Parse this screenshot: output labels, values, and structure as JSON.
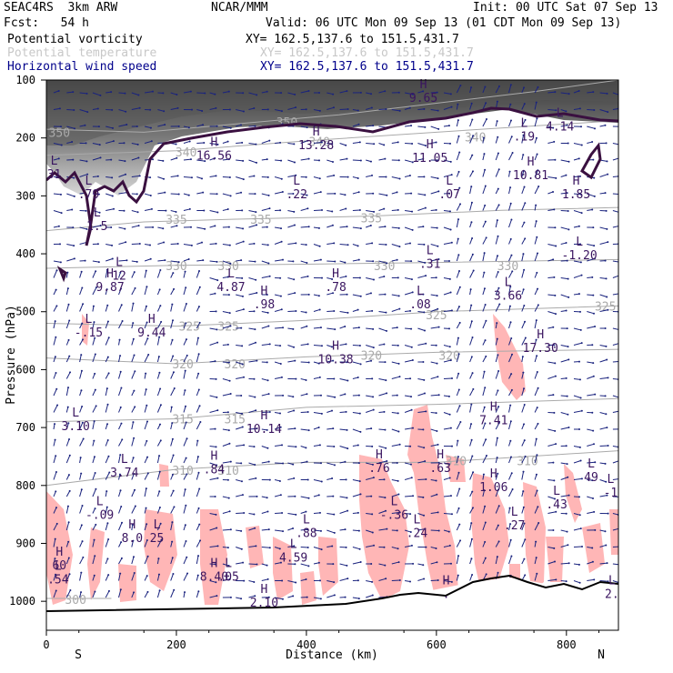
{
  "header": {
    "model": "SEAC4RS  3km ARW",
    "org": "NCAR/MMM",
    "init": "Init: 00 UTC Sat 07 Sep 13",
    "fcst": "Fcst:   54 h",
    "valid": "Valid: 06 UTC Mon 09 Sep 13 (01 CDT Mon 09 Sep 13)"
  },
  "legend": [
    {
      "name": "Potential vorticity",
      "xy": "XY= 162.5,137.6 to 151.5,431.7",
      "color": "#000000"
    },
    {
      "name": "Potential temperature",
      "xy": "XY= 162.5,137.6 to 151.5,431.7",
      "color": "#c8c8c8"
    },
    {
      "name": "Horizontal wind speed",
      "xy": "XY= 162.5,137.6 to 151.5,431.7",
      "color": "#00008b"
    }
  ],
  "chart_data": {
    "type": "cross-section",
    "xlabel": "Distance (km)",
    "ylabel": "Pressure (hPa)",
    "xlim": [
      0,
      880
    ],
    "ylim": [
      1050,
      100
    ],
    "x_ticks": [
      0,
      200,
      400,
      600,
      800
    ],
    "y_ticks": [
      100,
      200,
      300,
      400,
      500,
      600,
      700,
      800,
      900,
      1000
    ],
    "end_labels": {
      "left": "S",
      "right": "N"
    },
    "theta_contours": [
      {
        "label": "350",
        "pts": [
          [
            0,
            185
          ],
          [
            150,
            190
          ],
          [
            300,
            175
          ],
          [
            450,
            160
          ],
          [
            600,
            140
          ],
          [
            750,
            120
          ],
          [
            880,
            100
          ]
        ],
        "labels": [
          [
            20,
            190
          ],
          [
            370,
            172
          ]
        ]
      },
      {
        "label": "340",
        "pts": [
          [
            0,
            230
          ],
          [
            200,
            222
          ],
          [
            400,
            205
          ],
          [
            600,
            190
          ],
          [
            880,
            170
          ]
        ],
        "labels": [
          [
            215,
            224
          ],
          [
            420,
            206
          ],
          [
            660,
            198
          ]
        ]
      },
      {
        "label": "335",
        "pts": [
          [
            0,
            360
          ],
          [
            150,
            345
          ],
          [
            300,
            340
          ],
          [
            500,
            335
          ],
          [
            700,
            325
          ],
          [
            880,
            320
          ]
        ],
        "labels": [
          [
            200,
            340
          ],
          [
            330,
            340
          ],
          [
            500,
            338
          ]
        ]
      },
      {
        "label": "330",
        "pts": [
          [
            0,
            425
          ],
          [
            200,
            420
          ],
          [
            400,
            418
          ],
          [
            600,
            415
          ],
          [
            880,
            410
          ]
        ],
        "labels": [
          [
            200,
            420
          ],
          [
            280,
            420
          ],
          [
            520,
            420
          ],
          [
            710,
            420
          ]
        ]
      },
      {
        "label": "325",
        "pts": [
          [
            0,
            520
          ],
          [
            200,
            525
          ],
          [
            400,
            515
          ],
          [
            600,
            500
          ],
          [
            880,
            490
          ]
        ],
        "labels": [
          [
            220,
            525
          ],
          [
            280,
            525
          ],
          [
            600,
            505
          ],
          [
            860,
            490
          ]
        ]
      },
      {
        "label": "320",
        "pts": [
          [
            0,
            580
          ],
          [
            200,
            590
          ],
          [
            400,
            578
          ],
          [
            600,
            570
          ],
          [
            880,
            565
          ]
        ],
        "labels": [
          [
            210,
            590
          ],
          [
            290,
            590
          ],
          [
            500,
            575
          ],
          [
            620,
            575
          ]
        ]
      },
      {
        "label": "315",
        "pts": [
          [
            0,
            690
          ],
          [
            200,
            685
          ],
          [
            400,
            665
          ],
          [
            600,
            660
          ],
          [
            880,
            650
          ]
        ],
        "labels": [
          [
            210,
            685
          ],
          [
            290,
            685
          ]
        ]
      },
      {
        "label": "310",
        "pts": [
          [
            0,
            800
          ],
          [
            200,
            772
          ],
          [
            400,
            760
          ],
          [
            600,
            760
          ],
          [
            880,
            740
          ]
        ],
        "labels": [
          [
            210,
            774
          ],
          [
            280,
            774
          ],
          [
            630,
            757
          ],
          [
            740,
            757
          ]
        ]
      },
      {
        "label": "300",
        "pts": [
          [
            0,
            995
          ],
          [
            100,
            995
          ]
        ],
        "labels": [
          [
            45,
            997
          ]
        ]
      }
    ],
    "extrema": [
      {
        "type": "L",
        "value": "31",
        "d": 12,
        "p": 260
      },
      {
        "type": "L",
        "value": ".79",
        "d": 65,
        "p": 295
      },
      {
        "type": "L",
        "value": "1.5",
        "d": 78,
        "p": 350
      },
      {
        "type": "L",
        "value": "12",
        "d": 112,
        "p": 435
      },
      {
        "type": "H",
        "value": "9.87",
        "d": 98,
        "p": 455
      },
      {
        "type": "H",
        "value": "16.56",
        "d": 258,
        "p": 228
      },
      {
        "type": "L",
        "value": ".22",
        "d": 385,
        "p": 295
      },
      {
        "type": "H",
        "value": "13.28",
        "d": 415,
        "p": 210
      },
      {
        "type": "H",
        "value": "9.65",
        "d": 580,
        "p": 128
      },
      {
        "type": "H",
        "value": "11.05",
        "d": 590,
        "p": 232
      },
      {
        "type": "L",
        "value": ".07",
        "d": 620,
        "p": 295
      },
      {
        "type": "L",
        "value": "4.14",
        "d": 790,
        "p": 178
      },
      {
        "type": "L",
        "value": ".19",
        "d": 735,
        "p": 195
      },
      {
        "type": "H",
        "value": "10.81",
        "d": 745,
        "p": 262
      },
      {
        "type": "H",
        "value": "1.85",
        "d": 815,
        "p": 295
      },
      {
        "type": "L",
        "value": "-1.20",
        "d": 820,
        "p": 400
      },
      {
        "type": "L",
        "value": "4.87",
        "d": 284,
        "p": 455
      },
      {
        "type": "H",
        "value": ".98",
        "d": 335,
        "p": 485
      },
      {
        "type": "H",
        "value": ".78",
        "d": 445,
        "p": 455
      },
      {
        "type": "L",
        "value": ".31",
        "d": 590,
        "p": 415
      },
      {
        "type": "L",
        "value": ".08",
        "d": 575,
        "p": 485
      },
      {
        "type": "L",
        "value": "3.66",
        "d": 710,
        "p": 470
      },
      {
        "type": "L",
        "value": "-.15",
        "d": 65,
        "p": 533
      },
      {
        "type": "H",
        "value": "9.44",
        "d": 162,
        "p": 533
      },
      {
        "type": "H",
        "value": "10.38",
        "d": 445,
        "p": 580
      },
      {
        "type": "H",
        "value": "17.30",
        "d": 760,
        "p": 560
      },
      {
        "type": "L",
        "value": "3.10",
        "d": 45,
        "p": 695
      },
      {
        "type": "H",
        "value": "10.14",
        "d": 335,
        "p": 700
      },
      {
        "type": "H",
        "value": "7.41",
        "d": 688,
        "p": 685
      },
      {
        "type": "L",
        "value": "3.74",
        "d": 120,
        "p": 775
      },
      {
        "type": "H",
        "value": ".84",
        "d": 258,
        "p": 770
      },
      {
        "type": "H",
        "value": ".76",
        "d": 512,
        "p": 767
      },
      {
        "type": "H",
        "value": ".63",
        "d": 606,
        "p": 767
      },
      {
        "type": "H",
        "value": "1.06",
        "d": 688,
        "p": 800
      },
      {
        "type": "L",
        "value": "49",
        "d": 838,
        "p": 783
      },
      {
        "type": "L",
        "value": "-1",
        "d": 868,
        "p": 810
      },
      {
        "type": "L",
        "value": "-.09",
        "d": 82,
        "p": 848
      },
      {
        "type": "L",
        "value": "-.36",
        "d": 535,
        "p": 848
      },
      {
        "type": "L",
        "value": ".43",
        "d": 785,
        "p": 830
      },
      {
        "type": "H",
        "value": "8.0",
        "d": 132,
        "p": 888
      },
      {
        "type": "L",
        "value": "25",
        "d": 170,
        "p": 888
      },
      {
        "type": "L",
        "value": ".27",
        "d": 720,
        "p": 866
      },
      {
        "type": "L",
        "value": ".24",
        "d": 570,
        "p": 880
      },
      {
        "type": "L",
        "value": ".88",
        "d": 400,
        "p": 880
      },
      {
        "type": "L",
        "value": "4.59",
        "d": 380,
        "p": 922
      },
      {
        "type": "H",
        "value": "60",
        "d": 20,
        "p": 935
      },
      {
        "type": "L",
        "value": ".54",
        "d": 18,
        "p": 960
      },
      {
        "type": "H",
        "value": "8.40",
        "d": 258,
        "p": 955
      },
      {
        "type": "L",
        "value": ".05",
        "d": 280,
        "p": 955
      },
      {
        "type": "H",
        "value": "2.10",
        "d": 335,
        "p": 1000
      },
      {
        "type": "H",
        "value": ".",
        "d": 615,
        "p": 985
      },
      {
        "type": "L",
        "value": "2.",
        "d": 870,
        "p": 985
      }
    ]
  }
}
